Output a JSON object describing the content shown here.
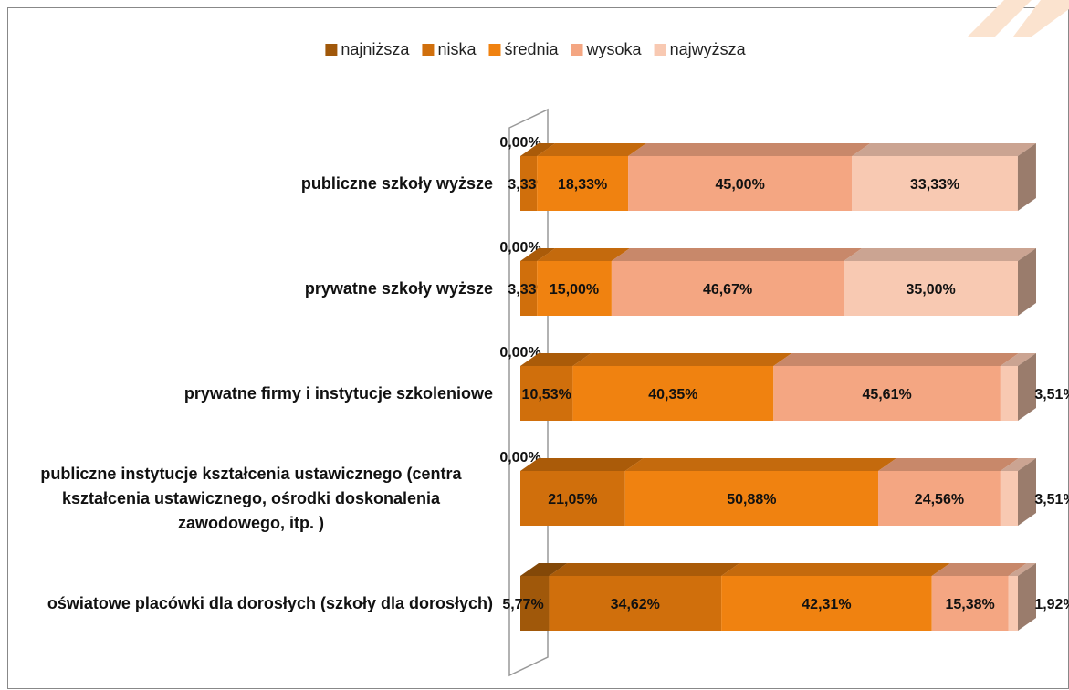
{
  "chart_data": {
    "type": "bar3d_stacked_horizontal",
    "categories": [
      "publiczne szkoły wyższe",
      "prywatne szkoły wyższe",
      "prywatne firmy i instytucje szkoleniowe",
      "publiczne instytucje kształcenia ustawicznego (centra kształcenia ustawicznego, ośrodki doskonalenia zawodowego, itp. )",
      "oświatowe placówki dla dorosłych (szkoły dla dorosłych)"
    ],
    "xlim": [
      0,
      100
    ],
    "legend": "top",
    "series": [
      {
        "name": "najniższa",
        "color": "#a0580a",
        "values": [
          0,
          0,
          0,
          0,
          5.77
        ],
        "value_labels": [
          "0,00%",
          "0,00%",
          "0,00%",
          "0,00%",
          "5,77%"
        ]
      },
      {
        "name": "niska",
        "color": "#d06f0c",
        "values": [
          3.33,
          3.33,
          10.53,
          21.05,
          34.62
        ],
        "value_labels": [
          "3,33%",
          "3,33%",
          "10,53%",
          "21,05%",
          "34,62%"
        ]
      },
      {
        "name": "średnia",
        "color": "#f08210",
        "values": [
          18.33,
          15.0,
          40.35,
          50.88,
          42.31
        ],
        "value_labels": [
          "18,33%",
          "15,00%",
          "40,35%",
          "50,88%",
          "42,31%"
        ]
      },
      {
        "name": "wysoka",
        "color": "#f4a682",
        "values": [
          45.0,
          46.67,
          45.61,
          24.56,
          15.38
        ],
        "value_labels": [
          "45,00%",
          "46,67%",
          "45,61%",
          "24,56%",
          "15,38%"
        ]
      },
      {
        "name": "najwyższa",
        "color": "#f8c9b2",
        "values": [
          33.33,
          35.0,
          3.51,
          3.51,
          1.92
        ],
        "value_labels": [
          "33,33%",
          "35,00%",
          "3,51%",
          "3,51%",
          "1,92%"
        ]
      }
    ]
  }
}
